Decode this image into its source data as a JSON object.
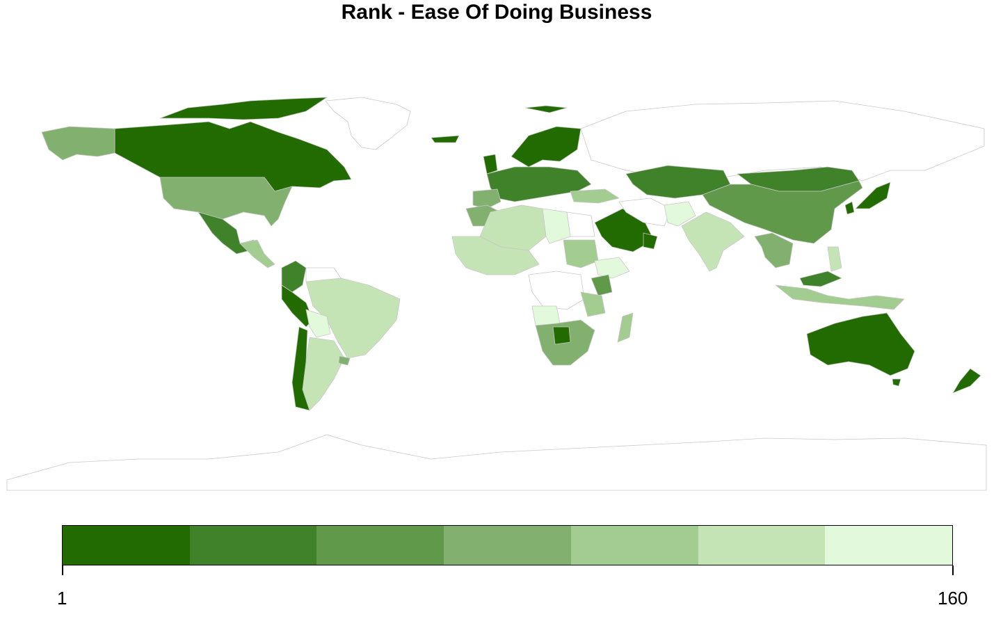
{
  "title": "Rank - Ease Of Doing Business",
  "legend": {
    "min_label": "1",
    "max_label": "160",
    "bins": [
      "#216b00",
      "#3f8229",
      "#61994b",
      "#82b16f",
      "#a3cc91",
      "#c4e4b6",
      "#e3f9dc"
    ]
  },
  "colors": {
    "no_data": "#ffffff",
    "border": "#c8c8c8"
  },
  "chart_data": {
    "type": "choropleth",
    "title": "Rank - Ease Of Doing Business",
    "value_range": [
      1,
      160
    ],
    "legend_placement": "bottom",
    "bin_count": 7
  }
}
